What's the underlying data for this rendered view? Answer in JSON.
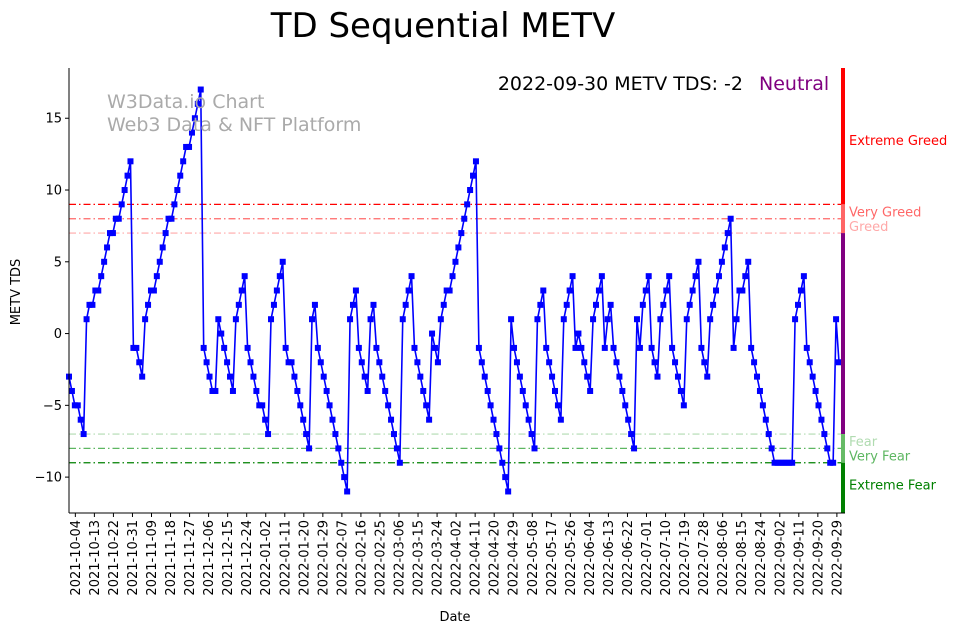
{
  "chart_data": {
    "type": "line",
    "title": "TD Sequential METV",
    "xlabel": "Date",
    "ylabel": "METV TDS",
    "watermark": [
      "W3Data.io Chart",
      "Web3 Data & NFT Platform"
    ],
    "status": {
      "text": "2022-09-30 METV TDS: -2",
      "label": "Neutral",
      "label_color": "#800080"
    },
    "ylim": [
      -12.5,
      18.5
    ],
    "yticks": [
      -10,
      -5,
      0,
      5,
      10,
      15
    ],
    "start_date": "2021-10-01",
    "end_date": "2022-09-30",
    "xticks": [
      "2021-10-04",
      "2021-10-13",
      "2021-10-22",
      "2021-10-31",
      "2021-11-09",
      "2021-11-18",
      "2021-11-27",
      "2021-12-06",
      "2021-12-15",
      "2021-12-24",
      "2022-01-02",
      "2022-01-11",
      "2022-01-20",
      "2022-01-29",
      "2022-02-07",
      "2022-02-16",
      "2022-02-25",
      "2022-03-06",
      "2022-03-15",
      "2022-03-24",
      "2022-04-02",
      "2022-04-11",
      "2022-04-20",
      "2022-04-29",
      "2022-05-08",
      "2022-05-17",
      "2022-05-26",
      "2022-06-04",
      "2022-06-13",
      "2022-06-22",
      "2022-07-01",
      "2022-07-10",
      "2022-07-19",
      "2022-07-28",
      "2022-08-06",
      "2022-08-15",
      "2022-08-24",
      "2022-09-02",
      "2022-09-11",
      "2022-09-20",
      "2022-09-29"
    ],
    "series": [
      {
        "name": "METV TDS",
        "color": "#0000ff",
        "values": [
          -3,
          -4,
          -5,
          -5,
          -6,
          -7,
          1,
          2,
          2,
          3,
          3,
          4,
          5,
          6,
          7,
          7,
          8,
          8,
          9,
          10,
          11,
          12,
          -1,
          -1,
          -2,
          -3,
          1,
          2,
          3,
          3,
          4,
          5,
          6,
          7,
          8,
          8,
          9,
          10,
          11,
          12,
          13,
          13,
          14,
          15,
          16,
          17,
          -1,
          -2,
          -3,
          -4,
          -4,
          1,
          0,
          -1,
          -2,
          -3,
          -4,
          1,
          2,
          3,
          4,
          -1,
          -2,
          -3,
          -4,
          -5,
          -5,
          -6,
          -7,
          1,
          2,
          3,
          4,
          5,
          -1,
          -2,
          -2,
          -3,
          -4,
          -5,
          -6,
          -7,
          -8,
          1,
          2,
          -1,
          -2,
          -3,
          -4,
          -5,
          -6,
          -7,
          -8,
          -9,
          -10,
          -11,
          1,
          2,
          3,
          -1,
          -2,
          -3,
          -4,
          1,
          2,
          -1,
          -2,
          -3,
          -4,
          -5,
          -6,
          -7,
          -8,
          -9,
          1,
          2,
          3,
          4,
          -1,
          -2,
          -3,
          -4,
          -5,
          -6,
          0,
          -1,
          -2,
          1,
          2,
          3,
          3,
          4,
          5,
          6,
          7,
          8,
          9,
          10,
          11,
          12,
          -1,
          -2,
          -3,
          -4,
          -5,
          -6,
          -7,
          -8,
          -9,
          -10,
          -11,
          1,
          -1,
          -2,
          -3,
          -4,
          -5,
          -6,
          -7,
          -8,
          1,
          2,
          3,
          -1,
          -2,
          -3,
          -4,
          -5,
          -6,
          1,
          2,
          3,
          4,
          -1,
          0,
          -1,
          -2,
          -3,
          -4,
          1,
          2,
          3,
          4,
          -1,
          1,
          2,
          -1,
          -2,
          -3,
          -4,
          -5,
          -6,
          -7,
          -8,
          1,
          -1,
          2,
          3,
          4,
          -1,
          -2,
          -3,
          1,
          2,
          3,
          4,
          -1,
          -2,
          -3,
          -4,
          -5,
          1,
          2,
          3,
          4,
          5,
          -1,
          -2,
          -3,
          1,
          2,
          3,
          4,
          5,
          6,
          7,
          8,
          -1,
          1,
          3,
          3,
          4,
          5,
          -1,
          -2,
          -3,
          -4,
          -5,
          -6,
          -7,
          -8,
          -9,
          -9,
          -9,
          -9,
          -9,
          -9,
          -9,
          1,
          2,
          3,
          4,
          -1,
          -2,
          -3,
          -4,
          -5,
          -6,
          -7,
          -8,
          -9,
          -9,
          1,
          -2
        ]
      }
    ],
    "thresholds": [
      {
        "label": "Extreme Greed",
        "color": "#ff0000",
        "value": 9,
        "alpha": 1.0,
        "label_value": 13.5,
        "line": true
      },
      {
        "label": "Very Greed",
        "color": "#ff4d4d",
        "value": 8,
        "alpha": 0.85,
        "label_value": 8.5,
        "line": true
      },
      {
        "label": "Greed",
        "color": "#ff9999",
        "value": 7,
        "alpha": 0.85,
        "label_value": 7.5,
        "line": true
      },
      {
        "label": "Fear",
        "color": "#a8d8a8",
        "value": -7,
        "alpha": 0.9,
        "label_value": -7.5,
        "line": true
      },
      {
        "label": "Very Fear",
        "color": "#4caf50",
        "value": -8,
        "alpha": 0.9,
        "label_value": -8.5,
        "line": true
      },
      {
        "label": "Extreme Fear",
        "color": "#008000",
        "value": -9,
        "alpha": 1.0,
        "label_value": -10.5,
        "line": true
      }
    ],
    "side_bar": [
      {
        "from": 9,
        "to": 18.5,
        "color": "#ff0000"
      },
      {
        "from": 7,
        "to": 9,
        "color": "#ff6666"
      },
      {
        "from": -7,
        "to": 7,
        "color": "#800080"
      },
      {
        "from": -9,
        "to": -7,
        "color": "#66bb66"
      },
      {
        "from": -12.5,
        "to": -9,
        "color": "#008000"
      }
    ]
  }
}
